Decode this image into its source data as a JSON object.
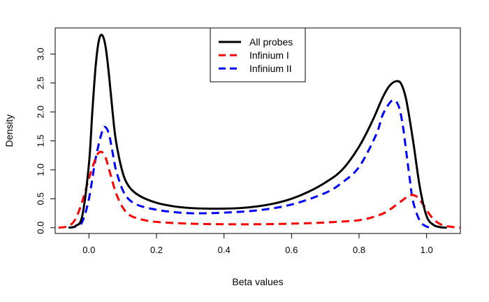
{
  "chart_data": {
    "type": "line",
    "title": "",
    "xlabel": "Beta values",
    "ylabel": "Density",
    "xlim": [
      -0.1,
      1.1
    ],
    "ylim": [
      -0.1,
      3.45
    ],
    "x_ticks": [
      0.0,
      0.2,
      0.4,
      0.6,
      0.8,
      1.0
    ],
    "x_tick_labels": [
      "0.0",
      "0.2",
      "0.4",
      "0.6",
      "0.8",
      "1.0"
    ],
    "y_ticks": [
      0.0,
      0.5,
      1.0,
      1.5,
      2.0,
      2.5,
      3.0
    ],
    "y_tick_labels": [
      "0.0",
      "0.5",
      "1.0",
      "1.5",
      "2.0",
      "2.5",
      "3.0"
    ],
    "grid": false,
    "legend_position": "top-center",
    "series": [
      {
        "name": "All probes",
        "color": "#000000",
        "style": "solid",
        "x": [
          -0.06,
          -0.04,
          -0.02,
          0.0,
          0.01,
          0.02,
          0.03,
          0.04,
          0.05,
          0.06,
          0.07,
          0.08,
          0.1,
          0.12,
          0.15,
          0.2,
          0.25,
          0.3,
          0.35,
          0.4,
          0.45,
          0.5,
          0.55,
          0.6,
          0.65,
          0.7,
          0.75,
          0.8,
          0.84,
          0.87,
          0.89,
          0.91,
          0.925,
          0.94,
          0.96,
          0.98,
          1.0,
          1.02,
          1.04,
          1.06
        ],
        "y": [
          0.0,
          0.03,
          0.2,
          1.1,
          2.0,
          2.8,
          3.25,
          3.32,
          3.1,
          2.6,
          2.0,
          1.5,
          0.95,
          0.7,
          0.55,
          0.43,
          0.37,
          0.34,
          0.33,
          0.33,
          0.34,
          0.37,
          0.42,
          0.5,
          0.62,
          0.78,
          1.0,
          1.4,
          1.85,
          2.25,
          2.45,
          2.53,
          2.48,
          2.2,
          1.5,
          0.7,
          0.2,
          0.05,
          0.01,
          0.0
        ]
      },
      {
        "name": "Infinium I",
        "color": "#ff0000",
        "style": "dashed",
        "x": [
          -0.09,
          -0.06,
          -0.04,
          -0.02,
          0.0,
          0.02,
          0.03,
          0.04,
          0.05,
          0.06,
          0.08,
          0.1,
          0.12,
          0.15,
          0.2,
          0.3,
          0.4,
          0.5,
          0.6,
          0.7,
          0.8,
          0.85,
          0.88,
          0.9,
          0.93,
          0.95,
          0.97,
          0.99,
          1.01,
          1.03,
          1.05,
          1.08,
          1.1
        ],
        "y": [
          0.0,
          0.03,
          0.15,
          0.45,
          0.85,
          1.2,
          1.3,
          1.3,
          1.2,
          1.0,
          0.6,
          0.35,
          0.22,
          0.15,
          0.1,
          0.07,
          0.06,
          0.06,
          0.07,
          0.09,
          0.13,
          0.2,
          0.27,
          0.35,
          0.48,
          0.56,
          0.54,
          0.4,
          0.22,
          0.1,
          0.04,
          0.01,
          0.0
        ]
      },
      {
        "name": "Infinium II",
        "color": "#0000ff",
        "style": "dashed",
        "x": [
          -0.06,
          -0.04,
          -0.02,
          0.0,
          0.02,
          0.04,
          0.05,
          0.06,
          0.07,
          0.08,
          0.1,
          0.12,
          0.15,
          0.2,
          0.25,
          0.3,
          0.35,
          0.4,
          0.5,
          0.6,
          0.7,
          0.75,
          0.8,
          0.85,
          0.87,
          0.89,
          0.9,
          0.91,
          0.92,
          0.93,
          0.94,
          0.95,
          0.96,
          0.98,
          1.0,
          1.02
        ],
        "y": [
          0.0,
          0.02,
          0.1,
          0.5,
          1.2,
          1.68,
          1.73,
          1.6,
          1.3,
          1.0,
          0.65,
          0.48,
          0.38,
          0.31,
          0.27,
          0.25,
          0.25,
          0.26,
          0.3,
          0.4,
          0.6,
          0.78,
          1.05,
          1.6,
          1.95,
          2.15,
          2.2,
          2.18,
          2.05,
          1.75,
          1.3,
          0.85,
          0.45,
          0.12,
          0.02,
          0.0
        ]
      }
    ]
  }
}
